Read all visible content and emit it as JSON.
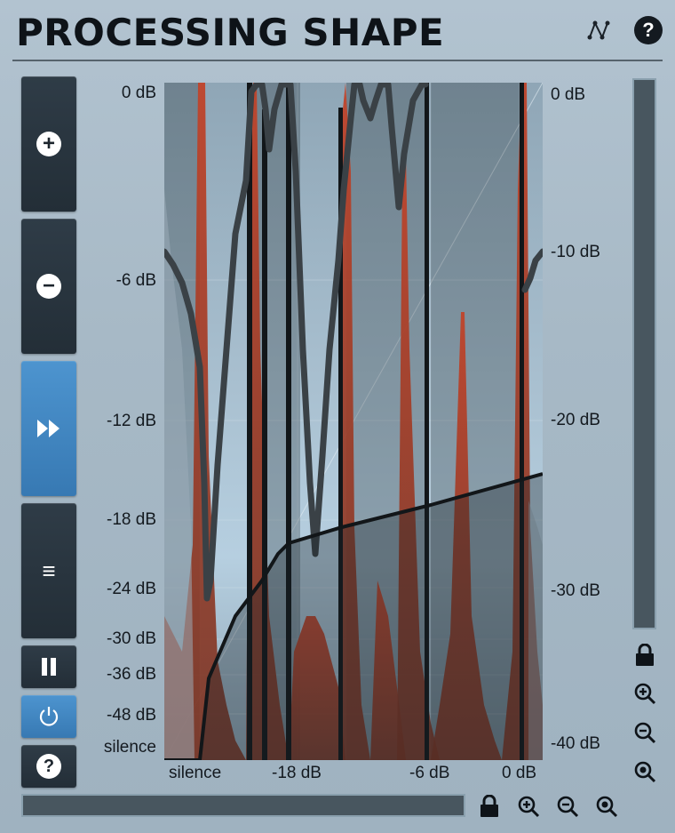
{
  "header": {
    "title": "PROCESSING SHAPE",
    "help_glyph": "?"
  },
  "sidebar": {
    "add_glyph": "+",
    "remove_glyph": "−",
    "menu_glyph": "≡",
    "help_glyph": "?"
  },
  "graph": {
    "left_scale": [
      "0 dB",
      "-6 dB",
      "-12 dB",
      "-18 dB",
      "-24 dB",
      "-30 dB",
      "-36 dB",
      "-48 dB",
      "silence"
    ],
    "right_scale": [
      "0 dB",
      "-10 dB",
      "-20 dB",
      "-30 dB",
      "-40 dB"
    ],
    "bottom_scale": [
      "silence",
      "-18 dB",
      "-6 dB",
      "0 dB"
    ]
  },
  "colors": {
    "accent": "#3f87c2",
    "button_dark": "#27333d",
    "background": "#a7b9c6",
    "spectrum_red": "#b5422c",
    "curve": "#121619"
  },
  "icons": [
    "shape-icon",
    "help-icon",
    "plus-icon",
    "minus-icon",
    "fast-forward-icon",
    "menu-icon",
    "pause-icon",
    "power-icon",
    "lock-icon",
    "zoom-in-icon",
    "zoom-out-icon",
    "zoom-reset-icon"
  ]
}
